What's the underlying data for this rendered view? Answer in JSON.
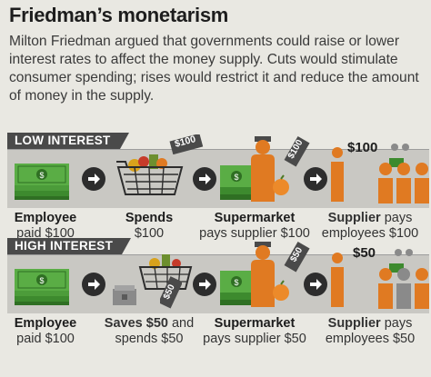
{
  "title": "Friedman’s monetarism",
  "intro": "Milton Friedman argued that governments could raise or lower interest rates to affect the money supply. Cuts would stimulate consumer spending; rises would restrict it and reduce the amount of money in the supply.",
  "colors": {
    "money": "#3d8a2e",
    "person": "#e07a22",
    "band": "#c9c8c3",
    "tag": "#4a4a4a"
  },
  "low": {
    "tag": "LOW INTEREST",
    "basket_price": "$100",
    "bag_price": "$100",
    "pay_label": "$100",
    "captions": [
      {
        "bold": "Employee",
        "l1": "",
        "l2": "paid $100"
      },
      {
        "bold": "Spends",
        "l1": "",
        "l2": "$100"
      },
      {
        "bold": "Supermarket",
        "l1": "",
        "l2": "pays supplier $100"
      },
      {
        "bold": "Supplier",
        "l1": " pays",
        "l2": "employees $100"
      }
    ]
  },
  "high": {
    "tag": "HIGH INTEREST",
    "basket_price": "$50",
    "bag_price": "$50",
    "pay_label": "$50",
    "captions": [
      {
        "bold": "Employee",
        "l1": "",
        "l2": "paid $100"
      },
      {
        "bold": "Saves $50",
        "l1": " and",
        "l2": "spends $50"
      },
      {
        "bold": "Supermarket",
        "l1": "",
        "l2": "pays supplier $50"
      },
      {
        "bold": "Supplier",
        "l1": " pays",
        "l2": "employees $50"
      }
    ]
  }
}
